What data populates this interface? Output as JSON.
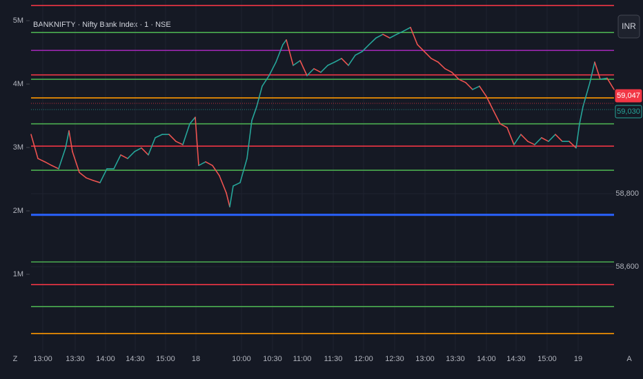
{
  "chart_data": {
    "type": "line",
    "title": "BANKNIFTY · Nifty Bank Index · 1 · NSE",
    "currency_button": "INR",
    "corner_left": "Z",
    "corner_right": "A",
    "x": [
      0,
      10,
      20,
      30,
      40,
      50,
      55,
      60,
      70,
      80,
      90,
      100,
      110,
      120,
      130,
      140,
      150,
      160,
      170,
      180,
      190,
      200,
      210,
      220,
      230,
      238,
      243,
      253,
      263,
      273,
      283,
      288,
      293,
      303,
      313,
      320,
      327,
      335,
      345,
      355,
      365,
      370,
      380,
      390,
      400,
      410,
      420,
      430,
      440,
      450,
      460,
      470,
      480,
      490,
      500,
      510,
      520,
      530,
      540,
      550,
      560,
      570,
      580,
      590,
      600,
      610,
      620,
      630,
      640,
      650,
      660,
      670,
      680,
      690,
      700,
      710,
      720,
      730,
      740,
      750,
      760,
      770,
      780,
      790,
      795,
      800,
      810,
      817,
      825,
      835,
      845
    ],
    "series": [
      {
        "name": "BANKNIFTY",
        "up_color": "#26a69a",
        "down_color": "#ef5350",
        "values": [
          58962,
          58896,
          58887,
          58877,
          58868,
          58925,
          58972,
          58915,
          58858,
          58843,
          58836,
          58830,
          58868,
          58868,
          58906,
          58896,
          58915,
          58925,
          58906,
          58953,
          58962,
          58962,
          58943,
          58934,
          58991,
          59009,
          58877,
          58887,
          58877,
          58849,
          58802,
          58764,
          58821,
          58830,
          58896,
          59000,
          59038,
          59094,
          59123,
          59160,
          59208,
          59221,
          59151,
          59164,
          59123,
          59142,
          59132,
          59151,
          59160,
          59170,
          59151,
          59179,
          59189,
          59208,
          59226,
          59236,
          59226,
          59236,
          59245,
          59255,
          59208,
          59189,
          59170,
          59160,
          59142,
          59132,
          59113,
          59104,
          59085,
          59094,
          59066,
          59028,
          58991,
          58981,
          58934,
          58962,
          58943,
          58934,
          58953,
          58943,
          58962,
          58943,
          58943,
          58925,
          58991,
          59038,
          59104,
          59160,
          59113,
          59116,
          59085
        ]
      }
    ],
    "xlim": [
      0,
      845
    ],
    "xticks": [
      {
        "value": 17,
        "label": "13:00"
      },
      {
        "value": 64,
        "label": "13:30"
      },
      {
        "value": 108,
        "label": "14:00"
      },
      {
        "value": 151,
        "label": "14:30"
      },
      {
        "value": 195,
        "label": "15:00"
      },
      {
        "value": 239,
        "label": "18"
      },
      {
        "value": 305,
        "label": "10:00"
      },
      {
        "value": 350,
        "label": "10:30"
      },
      {
        "value": 393,
        "label": "11:00"
      },
      {
        "value": 438,
        "label": "11:30"
      },
      {
        "value": 482,
        "label": "12:00"
      },
      {
        "value": 527,
        "label": "12:30"
      },
      {
        "value": 571,
        "label": "13:00"
      },
      {
        "value": 615,
        "label": "13:30"
      },
      {
        "value": 660,
        "label": "14:00"
      },
      {
        "value": 703,
        "label": "14:30"
      },
      {
        "value": 748,
        "label": "15:00"
      },
      {
        "value": 793,
        "label": "19"
      }
    ],
    "ylim": [
      58368,
      59330
    ],
    "yticks": [
      {
        "value": 58600,
        "label": "58,600"
      },
      {
        "value": 58800,
        "label": "58,800"
      }
    ],
    "y2lim": [
      -217000,
      5326000
    ],
    "y2ticks": [
      {
        "value": 1000000,
        "label": "1M"
      },
      {
        "value": 2000000,
        "label": "2M"
      },
      {
        "value": 3000000,
        "label": "3M"
      },
      {
        "value": 4000000,
        "label": "4M"
      },
      {
        "value": 5000000,
        "label": "5M"
      }
    ],
    "levels": [
      {
        "value": 59315,
        "color": "#f23645"
      },
      {
        "value": 59241,
        "color": "#4caf50"
      },
      {
        "value": 59192,
        "color": "#9c27b0"
      },
      {
        "value": 59125,
        "color": "#f23645"
      },
      {
        "value": 59113,
        "color": "#4caf50"
      },
      {
        "value": 59062,
        "color": "#ff9800"
      },
      {
        "value": 58991,
        "color": "#4caf50"
      },
      {
        "value": 58930,
        "color": "#f23645"
      },
      {
        "value": 58864,
        "color": "#4caf50"
      },
      {
        "value": 58742,
        "color": "#2962ff"
      },
      {
        "value": 58613,
        "color": "#4caf50"
      },
      {
        "value": 58551,
        "color": "#f23645"
      },
      {
        "value": 58491,
        "color": "#4caf50"
      },
      {
        "value": 58417,
        "color": "#ff9800"
      }
    ],
    "price_labels": [
      {
        "value": 59047,
        "label": "59,047",
        "color": "#f23645"
      },
      {
        "value": 59030,
        "label": "59,030",
        "color": "#26a69a"
      }
    ]
  }
}
